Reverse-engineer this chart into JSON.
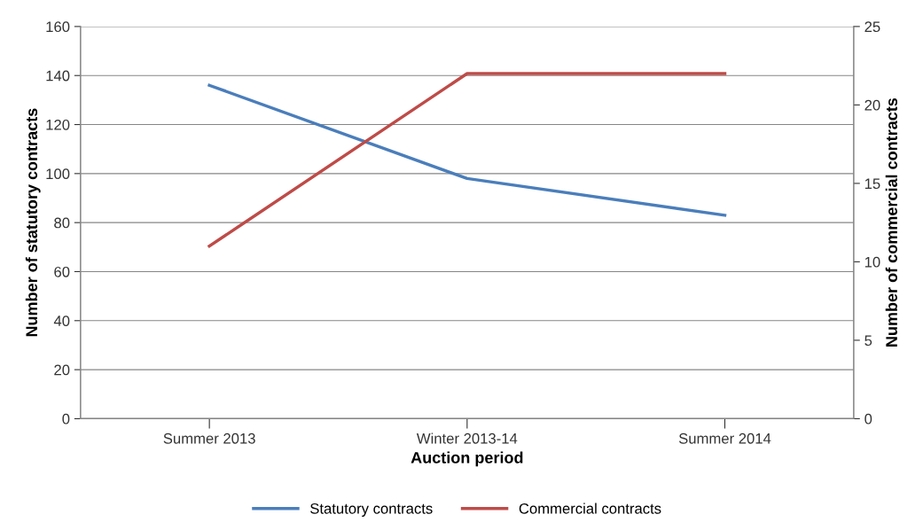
{
  "chart_data": {
    "type": "line",
    "xlabel": "Auction period",
    "ylabel": "Number of statutory contracts",
    "y2label": "Number of commercial contracts",
    "categories": [
      "Summer 2013",
      "Winter 2013-14",
      "Summer 2014"
    ],
    "series": [
      {
        "name": "Statutory contracts",
        "color": "#4a7ebb",
        "values": [
          136,
          98,
          83
        ]
      },
      {
        "name": "Commercial contracts",
        "color": "#be4b48",
        "values": [
          11,
          22,
          22
        ],
        "axis": "y2"
      }
    ],
    "ylim": [
      0,
      160
    ],
    "yticks": [
      0,
      20,
      40,
      60,
      80,
      100,
      120,
      140,
      160
    ],
    "y2lim": [
      0,
      25
    ],
    "y2ticks": [
      0,
      5,
      10,
      15,
      20,
      25
    ],
    "grid": "y",
    "legend": "bottom",
    "marker": "none",
    "line_style": "solid"
  }
}
